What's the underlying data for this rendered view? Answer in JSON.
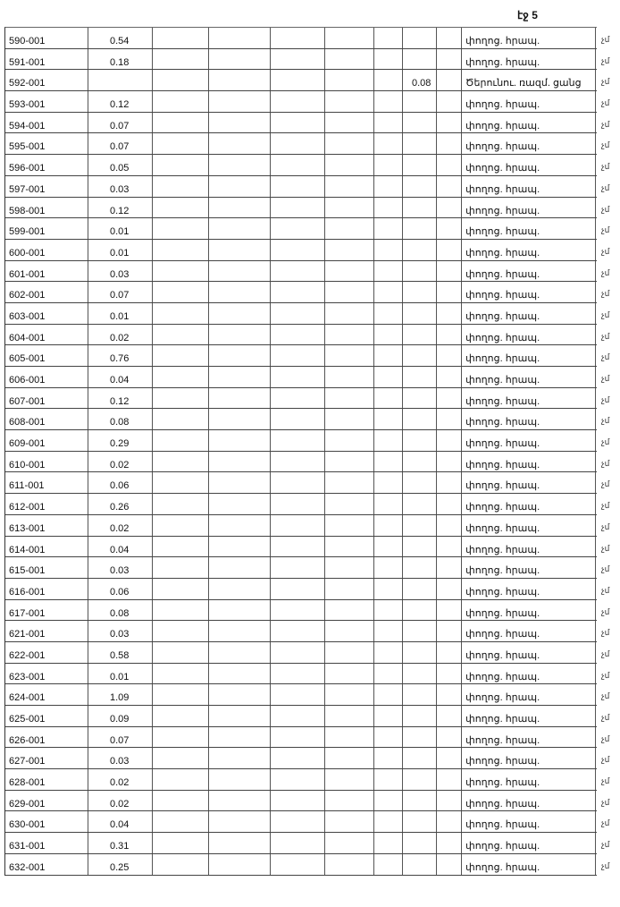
{
  "page_label": "էջ 5",
  "rows": [
    {
      "code": "590-001",
      "value": "0.54",
      "extra": "",
      "desc": "փողոց. հրապ.",
      "mark": "չմ"
    },
    {
      "code": "591-001",
      "value": "0.18",
      "extra": "",
      "desc": "փողոց. հրապ.",
      "mark": "չմ"
    },
    {
      "code": "592-001",
      "value": "",
      "extra": "0.08",
      "desc": "Ծերունու. ռազմ. ցանց",
      "mark": "չմ"
    },
    {
      "code": "593-001",
      "value": "0.12",
      "extra": "",
      "desc": "փողոց. հրապ.",
      "mark": "չմ"
    },
    {
      "code": "594-001",
      "value": "0.07",
      "extra": "",
      "desc": "փողոց. հրապ.",
      "mark": "չմ"
    },
    {
      "code": "595-001",
      "value": "0.07",
      "extra": "",
      "desc": "փողոց. հրապ.",
      "mark": "չմ"
    },
    {
      "code": "596-001",
      "value": "0.05",
      "extra": "",
      "desc": "փողոց. հրապ.",
      "mark": "չմ"
    },
    {
      "code": "597-001",
      "value": "0.03",
      "extra": "",
      "desc": "փողոց. հրապ.",
      "mark": "չմ"
    },
    {
      "code": "598-001",
      "value": "0.12",
      "extra": "",
      "desc": "փողոց. հրապ.",
      "mark": "չմ"
    },
    {
      "code": "599-001",
      "value": "0.01",
      "extra": "",
      "desc": "փողոց. հրապ.",
      "mark": "չմ"
    },
    {
      "code": "600-001",
      "value": "0.01",
      "extra": "",
      "desc": "փողոց. հրապ.",
      "mark": "չմ"
    },
    {
      "code": "601-001",
      "value": "0.03",
      "extra": "",
      "desc": "փողոց. հրապ.",
      "mark": "չմ"
    },
    {
      "code": "602-001",
      "value": "0.07",
      "extra": "",
      "desc": "փողոց. հրապ.",
      "mark": "չմ"
    },
    {
      "code": "603-001",
      "value": "0.01",
      "extra": "",
      "desc": "փողոց. հրապ.",
      "mark": "չմ"
    },
    {
      "code": "604-001",
      "value": "0.02",
      "extra": "",
      "desc": "փողոց. հրապ.",
      "mark": "չմ"
    },
    {
      "code": "605-001",
      "value": "0.76",
      "extra": "",
      "desc": "փողոց. հրապ.",
      "mark": "չմ"
    },
    {
      "code": "606-001",
      "value": "0.04",
      "extra": "",
      "desc": "փողոց. հրապ.",
      "mark": "չմ"
    },
    {
      "code": "607-001",
      "value": "0.12",
      "extra": "",
      "desc": "փողոց. հրապ.",
      "mark": "չմ"
    },
    {
      "code": "608-001",
      "value": "0.08",
      "extra": "",
      "desc": "փողոց. հրապ.",
      "mark": "չմ"
    },
    {
      "code": "609-001",
      "value": "0.29",
      "extra": "",
      "desc": "փողոց. հրապ.",
      "mark": "չմ"
    },
    {
      "code": "610-001",
      "value": "0.02",
      "extra": "",
      "desc": "փողոց. հրապ.",
      "mark": "չմ"
    },
    {
      "code": "611-001",
      "value": "0.06",
      "extra": "",
      "desc": "փողոց. հրապ.",
      "mark": "չմ"
    },
    {
      "code": "612-001",
      "value": "0.26",
      "extra": "",
      "desc": "փողոց. հրապ.",
      "mark": "չմ"
    },
    {
      "code": "613-001",
      "value": "0.02",
      "extra": "",
      "desc": "փողոց. հրապ.",
      "mark": "չմ"
    },
    {
      "code": "614-001",
      "value": "0.04",
      "extra": "",
      "desc": "փողոց. հրապ.",
      "mark": "չմ"
    },
    {
      "code": "615-001",
      "value": "0.03",
      "extra": "",
      "desc": "փողոց. հրապ.",
      "mark": "չմ"
    },
    {
      "code": "616-001",
      "value": "0.06",
      "extra": "",
      "desc": "փողոց. հրապ.",
      "mark": "չմ"
    },
    {
      "code": "617-001",
      "value": "0.08",
      "extra": "",
      "desc": "փողոց. հրապ.",
      "mark": "չմ"
    },
    {
      "code": "621-001",
      "value": "0.03",
      "extra": "",
      "desc": "փողոց. հրապ.",
      "mark": "չմ"
    },
    {
      "code": "622-001",
      "value": "0.58",
      "extra": "",
      "desc": "փողոց. հրապ.",
      "mark": "չմ"
    },
    {
      "code": "623-001",
      "value": "0.01",
      "extra": "",
      "desc": "փողոց. հրապ.",
      "mark": "չմ"
    },
    {
      "code": "624-001",
      "value": "1.09",
      "extra": "",
      "desc": "փողոց. հրապ.",
      "mark": "չմ"
    },
    {
      "code": "625-001",
      "value": "0.09",
      "extra": "",
      "desc": "փողոց. հրապ.",
      "mark": "չմ"
    },
    {
      "code": "626-001",
      "value": "0.07",
      "extra": "",
      "desc": "փողոց. հրապ.",
      "mark": "չմ"
    },
    {
      "code": "627-001",
      "value": "0.03",
      "extra": "",
      "desc": "փողոց. հրապ.",
      "mark": "չմ"
    },
    {
      "code": "628-001",
      "value": "0.02",
      "extra": "",
      "desc": "փողոց. հրապ.",
      "mark": "չմ"
    },
    {
      "code": "629-001",
      "value": "0.02",
      "extra": "",
      "desc": "փողոց. հրապ.",
      "mark": "չմ"
    },
    {
      "code": "630-001",
      "value": "0.04",
      "extra": "",
      "desc": "փողոց. հրապ.",
      "mark": "չմ"
    },
    {
      "code": "631-001",
      "value": "0.31",
      "extra": "",
      "desc": "փողոց. հրապ.",
      "mark": "չմ"
    },
    {
      "code": "632-001",
      "value": "0.25",
      "extra": "",
      "desc": "փողոց. հրապ.",
      "mark": "չմ"
    }
  ]
}
